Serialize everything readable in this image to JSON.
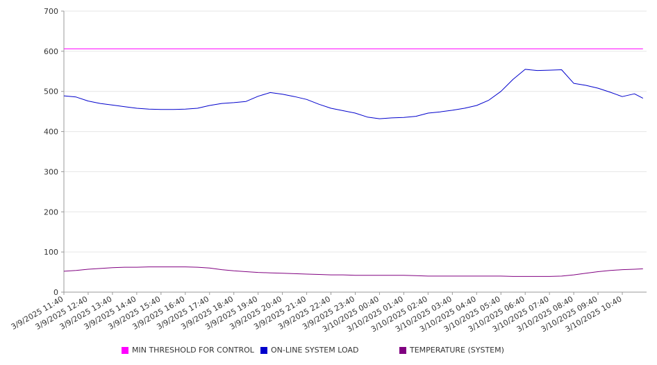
{
  "chart_data": {
    "type": "line",
    "title": "",
    "xlabel": "",
    "ylabel": "",
    "ylim": [
      0,
      700
    ],
    "yticks": [
      "0",
      "100",
      "200",
      "300",
      "400",
      "500",
      "600",
      "700"
    ],
    "grid": true,
    "legend_position": "bottom",
    "x_tick_labels": [
      "3/9/2025 11:40",
      "3/9/2025 12:40",
      "3/9/2025 13:40",
      "3/9/2025 14:40",
      "3/9/2025 15:40",
      "3/9/2025 16:40",
      "3/9/2025 17:40",
      "3/9/2025 18:40",
      "3/9/2025 19:40",
      "3/9/2025 20:40",
      "3/9/2025 21:40",
      "3/9/2025 22:40",
      "3/9/2025 23:40",
      "3/10/2025 00:40",
      "3/10/2025 01:40",
      "3/10/2025 02:40",
      "3/10/2025 03:40",
      "3/10/2025 04:40",
      "3/10/2025 05:40",
      "3/10/2025 06:40",
      "3/10/2025 07:40",
      "3/10/2025 08:40",
      "3/10/2025 09:40",
      "3/10/2025 10:40"
    ],
    "x_hours": [
      0,
      0.5,
      1,
      1.5,
      2,
      2.5,
      3,
      3.5,
      4,
      4.5,
      5,
      5.5,
      6,
      6.5,
      7,
      7.5,
      8,
      8.5,
      9,
      9.5,
      10,
      10.5,
      11,
      11.5,
      12,
      12.5,
      13,
      13.5,
      14,
      14.5,
      15,
      15.5,
      16,
      16.5,
      17,
      17.5,
      18,
      18.5,
      19,
      19.5,
      20,
      20.5,
      21,
      21.5,
      22,
      22.5,
      23,
      23.5,
      23.85
    ],
    "series": [
      {
        "name": "MIN THRESHOLD FOR CONTROL",
        "color": "#ff00ff",
        "values": [
          606,
          606,
          606,
          606,
          606,
          606,
          606,
          606,
          606,
          606,
          606,
          606,
          606,
          606,
          606,
          606,
          606,
          606,
          606,
          606,
          606,
          606,
          606,
          606,
          606,
          606,
          606,
          606,
          606,
          606,
          606,
          606,
          606,
          606,
          606,
          606,
          606,
          606,
          606,
          606,
          606,
          606,
          606,
          606,
          606,
          606,
          606,
          606,
          606
        ]
      },
      {
        "name": "ON-LINE SYSTEM LOAD",
        "color": "#0000cc",
        "values": [
          489,
          486,
          476,
          470,
          466,
          462,
          458,
          456,
          455,
          455,
          456,
          458,
          465,
          470,
          472,
          475,
          488,
          497,
          493,
          487,
          480,
          468,
          458,
          452,
          446,
          436,
          432,
          434,
          435,
          438,
          446,
          449,
          453,
          458,
          465,
          478,
          500,
          530,
          555,
          552,
          553,
          554,
          520,
          515,
          508,
          498,
          487,
          494,
          483
        ]
      },
      {
        "name": "TEMPERATURE (SYSTEM)",
        "color": "#800080",
        "values": [
          52,
          54,
          57,
          59,
          61,
          62,
          62,
          63,
          63,
          63,
          63,
          62,
          60,
          56,
          53,
          51,
          49,
          48,
          47,
          46,
          45,
          44,
          43,
          43,
          42,
          42,
          42,
          42,
          42,
          41,
          40,
          40,
          40,
          40,
          40,
          40,
          40,
          39,
          39,
          39,
          39,
          40,
          43,
          47,
          51,
          54,
          56,
          57,
          58
        ]
      }
    ]
  }
}
